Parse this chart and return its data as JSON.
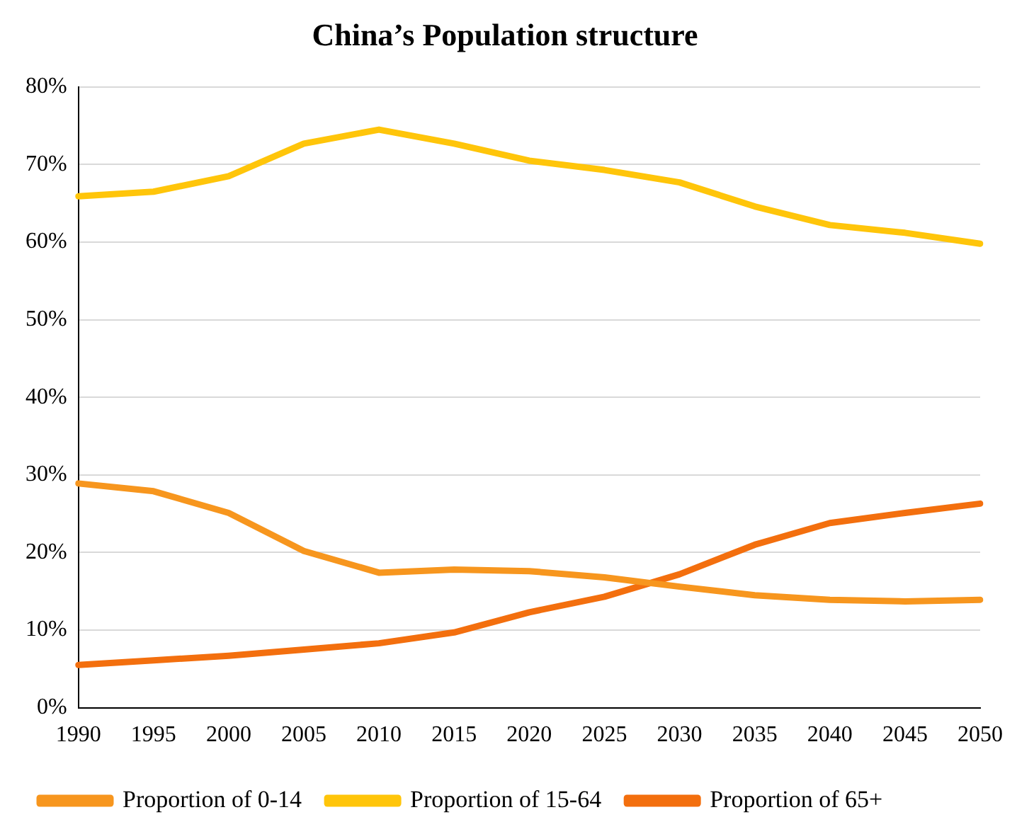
{
  "chart_data": {
    "type": "line",
    "title": "China’s Population structure",
    "categories": [
      "1990",
      "1995",
      "2000",
      "2005",
      "2010",
      "2015",
      "2020",
      "2025",
      "2030",
      "2035",
      "2040",
      "2045",
      "2050"
    ],
    "series": [
      {
        "name": "Proportion of 0-14",
        "color": "#f7961e",
        "values": [
          28.9,
          27.9,
          25.1,
          20.2,
          17.4,
          17.8,
          17.6,
          16.8,
          15.6,
          14.5,
          13.9,
          13.7,
          13.9
        ]
      },
      {
        "name": "Proportion of 15-64",
        "color": "#ffc50a",
        "values": [
          65.9,
          66.5,
          68.5,
          72.7,
          74.5,
          72.7,
          70.5,
          69.3,
          67.7,
          64.6,
          62.2,
          61.2,
          59.8
        ]
      },
      {
        "name": "Proportion of 65+",
        "color": "#f36f0e",
        "values": [
          5.5,
          6.1,
          6.7,
          7.5,
          8.3,
          9.7,
          12.3,
          14.3,
          17.2,
          21.0,
          23.8,
          25.1,
          26.3
        ]
      }
    ],
    "ylim": [
      0,
      80
    ],
    "yticks": [
      {
        "value": 0,
        "label": "0%"
      },
      {
        "value": 10,
        "label": "10%"
      },
      {
        "value": 20,
        "label": "20%"
      },
      {
        "value": 30,
        "label": "30%"
      },
      {
        "value": 40,
        "label": "40%"
      },
      {
        "value": 50,
        "label": "50%"
      },
      {
        "value": 60,
        "label": "60%"
      },
      {
        "value": 70,
        "label": "70%"
      },
      {
        "value": 80,
        "label": "80%"
      }
    ],
    "grid": "y",
    "legend": "bottom",
    "marker": "none",
    "line_style": "solid"
  }
}
